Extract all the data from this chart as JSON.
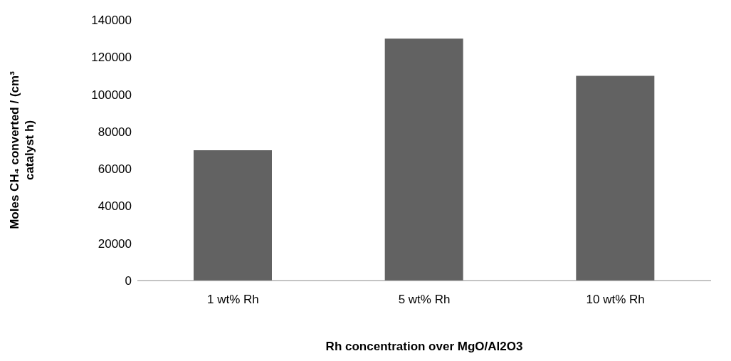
{
  "chart_data": {
    "type": "bar",
    "categories": [
      "1 wt% Rh",
      "5 wt% Rh",
      "10 wt% Rh"
    ],
    "values": [
      70000,
      130000,
      110000
    ],
    "color": "#626262",
    "xlabel": "Rh concentration over MgO/Al2O3",
    "ylabel": "Moles CH₄ converted / (cm³ catalyst h)",
    "ylim": [
      0,
      140000
    ],
    "yticks": [
      0,
      20000,
      40000,
      60000,
      80000,
      100000,
      120000,
      140000
    ],
    "grid": false,
    "legend": false
  }
}
